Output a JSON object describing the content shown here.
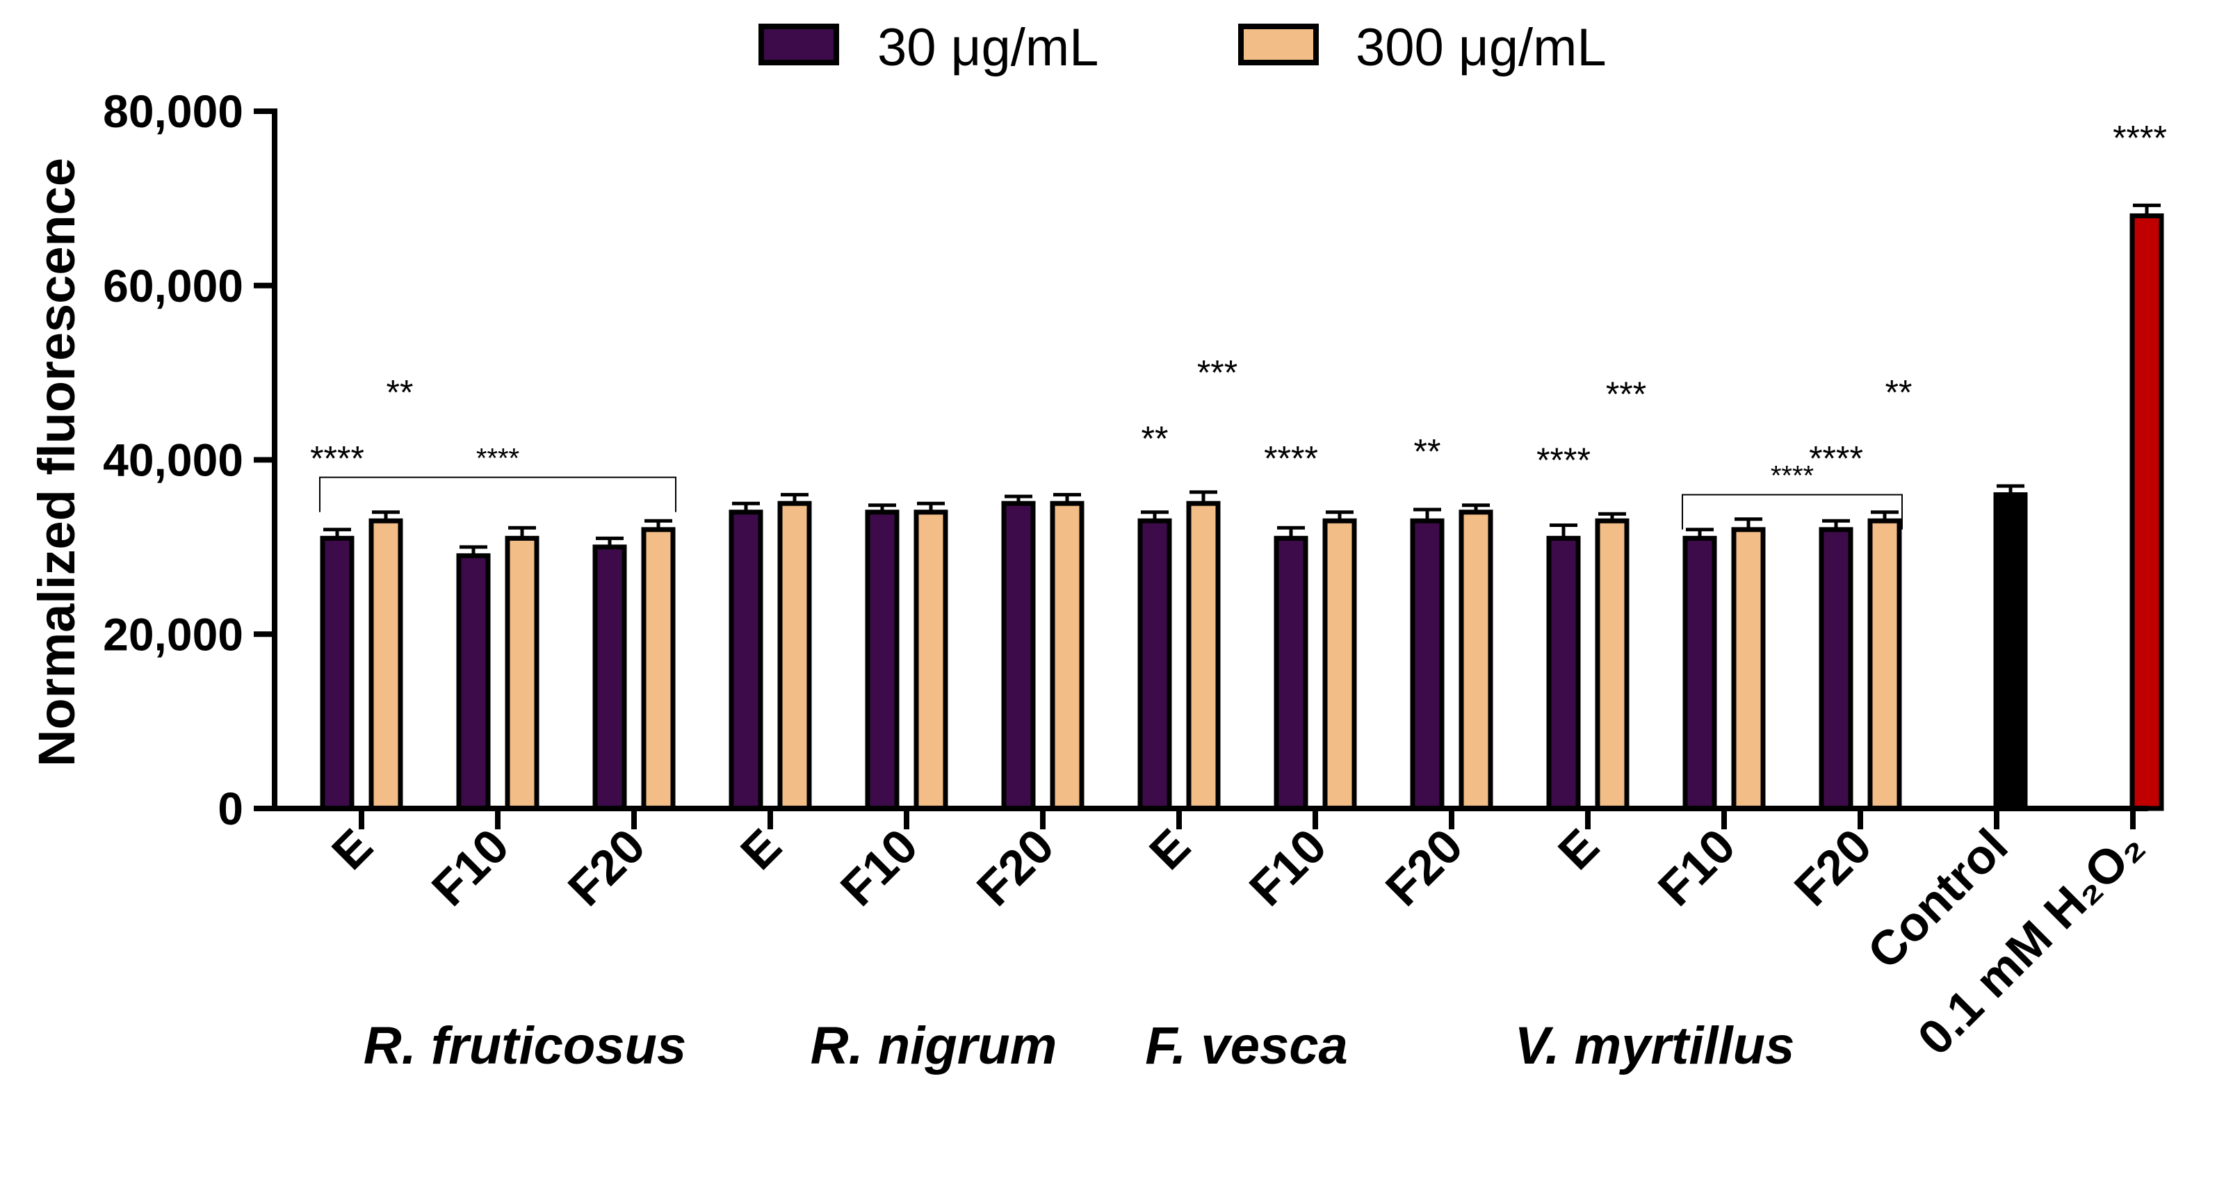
{
  "chart_data": {
    "type": "bar",
    "ylabel": "Normalized fluorescence",
    "ylim": [
      0,
      80000
    ],
    "yticks": [
      "0",
      "20,000",
      "40,000",
      "60,000",
      "80,000"
    ],
    "legend": [
      {
        "name": "30 μg/mL",
        "color": "#3d0b4a"
      },
      {
        "name": "300 μg/mL",
        "color": "#f2bd86"
      }
    ],
    "legend_position": "top-center",
    "colors": {
      "s30": "#3d0b4a",
      "s300": "#f2bd86",
      "control": "#000000",
      "h2o2": "#c00000"
    },
    "categories": [
      {
        "label": "E",
        "group": "R. fruticosus",
        "v30": 31000,
        "e30": 1000,
        "sig30": "****",
        "v300": 33000,
        "e300": 1000,
        "sig300": "**"
      },
      {
        "label": "F10",
        "group": "R. fruticosus",
        "v30": 29000,
        "e30": 1000,
        "sig30": "",
        "v300": 31000,
        "e300": 1200,
        "sig300": ""
      },
      {
        "label": "F20",
        "group": "R. fruticosus",
        "v30": 30000,
        "e30": 1000,
        "sig30": "",
        "v300": 32000,
        "e300": 1000,
        "sig300": ""
      },
      {
        "label": "E",
        "group": "R. nigrum",
        "v30": 34000,
        "e30": 1000,
        "sig30": "",
        "v300": 35000,
        "e300": 1000,
        "sig300": ""
      },
      {
        "label": "F10",
        "group": "R. nigrum",
        "v30": 34000,
        "e30": 800,
        "sig30": "",
        "v300": 34000,
        "e300": 1000,
        "sig300": ""
      },
      {
        "label": "F20",
        "group": "R. nigrum",
        "v30": 35000,
        "e30": 800,
        "sig30": "",
        "v300": 35000,
        "e300": 1000,
        "sig300": ""
      },
      {
        "label": "E",
        "group": "F. vesca",
        "v30": 33000,
        "e30": 1000,
        "sig30": "**",
        "v300": 35000,
        "e300": 1300,
        "sig300": "***"
      },
      {
        "label": "F10",
        "group": "F. vesca",
        "v30": 31000,
        "e30": 1200,
        "sig30": "****",
        "v300": 33000,
        "e300": 1000,
        "sig300": ""
      },
      {
        "label": "F20",
        "group": "F. vesca",
        "v30": 33000,
        "e30": 1300,
        "sig30": "**",
        "v300": 34000,
        "e300": 800,
        "sig300": ""
      },
      {
        "label": "E",
        "group": "V. myrtillus",
        "v30": 31000,
        "e30": 1500,
        "sig30": "****",
        "v300": 33000,
        "e300": 800,
        "sig300": "***"
      },
      {
        "label": "F10",
        "group": "V. myrtillus",
        "v30": 31000,
        "e30": 1000,
        "sig30": "",
        "v300": 32000,
        "e300": 1200,
        "sig300": ""
      },
      {
        "label": "F20",
        "group": "V. myrtillus",
        "v30": 32000,
        "e30": 1000,
        "sig30": "****",
        "v300": 33000,
        "e300": 1000,
        "sig300": "**"
      }
    ],
    "controls": [
      {
        "label": "Control",
        "value": 36000,
        "error": 1000,
        "sig": "",
        "color_key": "control"
      },
      {
        "label": "0.1 mM H₂O₂",
        "value": 68000,
        "error": 1200,
        "sig": "****",
        "color_key": "h2o2"
      }
    ],
    "groups": [
      "R. fruticosus",
      "R. nigrum",
      "F. vesca",
      "V. myrtillus"
    ],
    "brackets": [
      {
        "from": 0,
        "to": 2,
        "label": "****",
        "level": 38000
      },
      {
        "from": 10,
        "to": 11,
        "label": "****",
        "level": 36000
      }
    ]
  }
}
